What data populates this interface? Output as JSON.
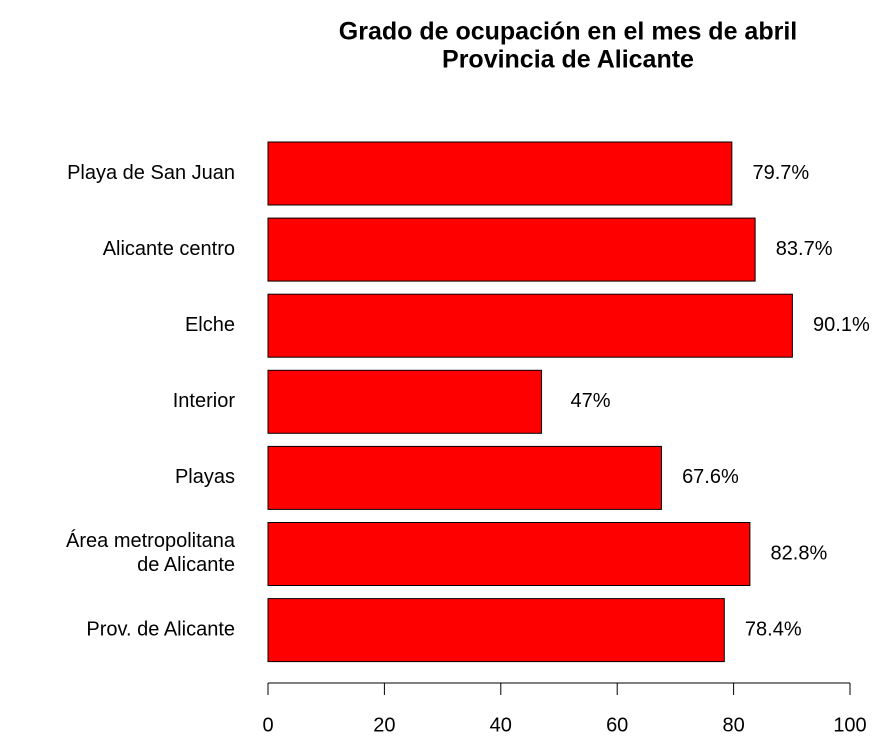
{
  "chart_data": {
    "type": "bar",
    "orientation": "horizontal",
    "title": [
      "Grado de ocupación en el mes de abril",
      "Provincia de Alicante"
    ],
    "categories": [
      "Playa de San Juan",
      "Alicante centro",
      "Elche",
      "Interior",
      "Playas",
      "Área metropolitana\nde Alicante",
      "Prov. de Alicante"
    ],
    "values": [
      79.7,
      83.7,
      90.1,
      47,
      67.6,
      82.8,
      78.4
    ],
    "value_labels": [
      "79.7%",
      "83.7%",
      "90.1%",
      "47%",
      "67.6%",
      "82.8%",
      "78.4%"
    ],
    "color": "#ff0000",
    "xlim": [
      0,
      100
    ],
    "xticks": [
      0,
      20,
      40,
      60,
      80,
      100
    ]
  }
}
